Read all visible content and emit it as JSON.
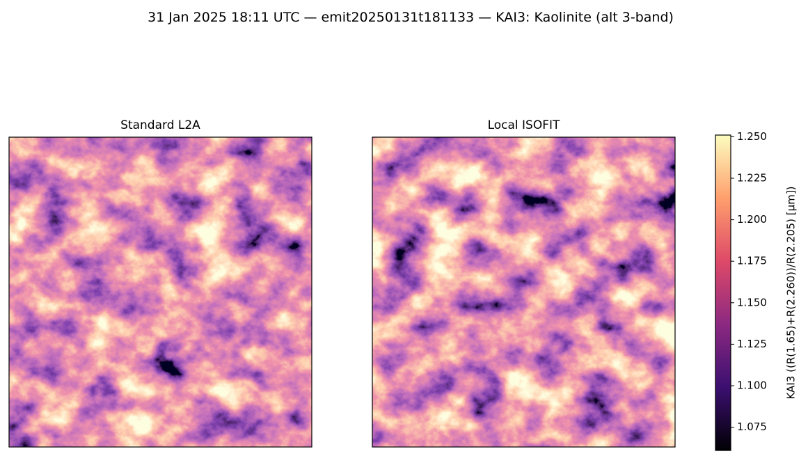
{
  "chart_data": {
    "type": "image",
    "title": "31 Jan 2025 18:11 UTC — emit20250131t181133 — KAI3: Kaolinite (alt 3-band)",
    "panels": [
      {
        "title": "Standard L2A"
      },
      {
        "title": "Local ISOFIT"
      }
    ],
    "colorbar": {
      "label": "KAI3  ((R(1.65)+R(2.260))/R(2.205)  [µm])",
      "lim": [
        1.061,
        1.251
      ],
      "ticks": [
        1.075,
        {
          "value": 1.1,
          "label": "1.100"
        },
        1.125,
        {
          "value": 1.15,
          "label": "1.150"
        },
        1.175,
        {
          "value": 1.2,
          "label": "1.200"
        },
        1.225,
        {
          "value": 1.25,
          "label": "1.250"
        }
      ],
      "cmap": "magma",
      "cmap_colors": [
        "#000004",
        "#3b0f70",
        "#8c2981",
        "#de4968",
        "#fe9f6d",
        "#fcfdbf"
      ]
    }
  }
}
